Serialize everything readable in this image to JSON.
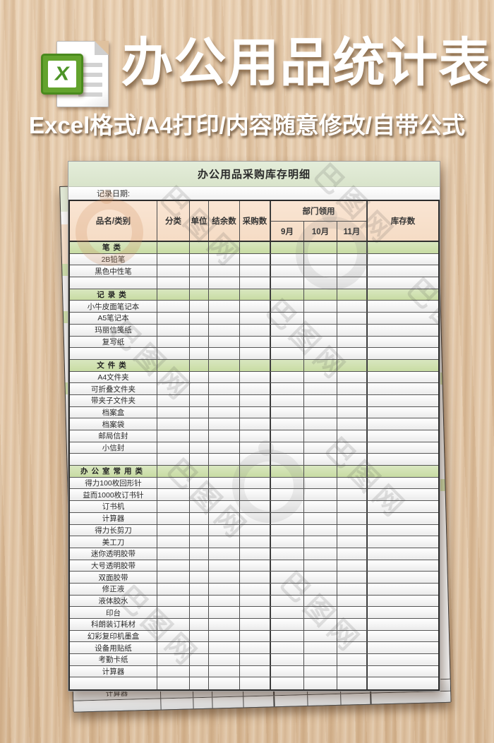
{
  "hero": {
    "title": "办公用品统计表",
    "subtitle": "Excel格式/A4打印/内容随意修改/自带公式",
    "icon_letter": "X"
  },
  "sheet": {
    "title": "办公用品采购库存明细",
    "record_date_label": "记录日期:",
    "columns": {
      "name": "品名/类别",
      "category": "分类",
      "unit": "单位",
      "balance": "结余数",
      "purchase": "采购数",
      "dept_group": "部门领用",
      "months": [
        "9月",
        "10月",
        "11月"
      ],
      "stock": "库存数"
    },
    "rows": [
      {
        "type": "category",
        "label": "笔类"
      },
      {
        "type": "item",
        "label": "2B铅笔"
      },
      {
        "type": "item",
        "label": "黑色中性笔"
      },
      {
        "type": "empty",
        "label": ""
      },
      {
        "type": "category",
        "label": "记录类"
      },
      {
        "type": "item",
        "label": "小牛皮面笔记本"
      },
      {
        "type": "item",
        "label": "A5笔记本"
      },
      {
        "type": "item",
        "label": "玛丽信笺纸"
      },
      {
        "type": "item",
        "label": "复写纸"
      },
      {
        "type": "empty",
        "label": ""
      },
      {
        "type": "category",
        "label": "文件类"
      },
      {
        "type": "item",
        "label": "A4文件夹"
      },
      {
        "type": "item",
        "label": "可折叠文件夹"
      },
      {
        "type": "item",
        "label": "带夹子文件夹"
      },
      {
        "type": "item",
        "label": "档案盒"
      },
      {
        "type": "item",
        "label": "档案袋"
      },
      {
        "type": "item",
        "label": "邮局信封"
      },
      {
        "type": "item",
        "label": "小信封"
      },
      {
        "type": "empty",
        "label": ""
      },
      {
        "type": "category",
        "label": "办公室常用类"
      },
      {
        "type": "item",
        "label": "得力100枚回形针"
      },
      {
        "type": "item",
        "label": "益而1000枚订书针"
      },
      {
        "type": "item",
        "label": "订书机"
      },
      {
        "type": "item",
        "label": "计算器"
      },
      {
        "type": "item",
        "label": "得力长剪刀"
      },
      {
        "type": "item",
        "label": "美工刀"
      },
      {
        "type": "item",
        "label": "迷你透明胶带"
      },
      {
        "type": "item",
        "label": "大号透明胶带"
      },
      {
        "type": "item",
        "label": "双面胶带"
      },
      {
        "type": "item",
        "label": "修正液"
      },
      {
        "type": "item",
        "label": "液体胶水"
      },
      {
        "type": "item",
        "label": "印台"
      },
      {
        "type": "item",
        "label": "科朗装订耗材"
      },
      {
        "type": "item",
        "label": "幻彩复印机墨盒"
      },
      {
        "type": "item",
        "label": "设备用贴纸"
      },
      {
        "type": "item",
        "label": "考勤卡纸"
      },
      {
        "type": "item",
        "label": "计算器"
      },
      {
        "type": "empty",
        "label": ""
      }
    ],
    "colors": {
      "header_fill": "#f7dfca",
      "category_fill": "#cfe0ae",
      "title_band_fill": "#dfe9d2",
      "excel_green": "#63a32d",
      "wood": "#dfc19e"
    }
  },
  "under_sheet": {
    "visible_row_label": "计算器"
  },
  "watermark": {
    "text": "巴图网"
  }
}
